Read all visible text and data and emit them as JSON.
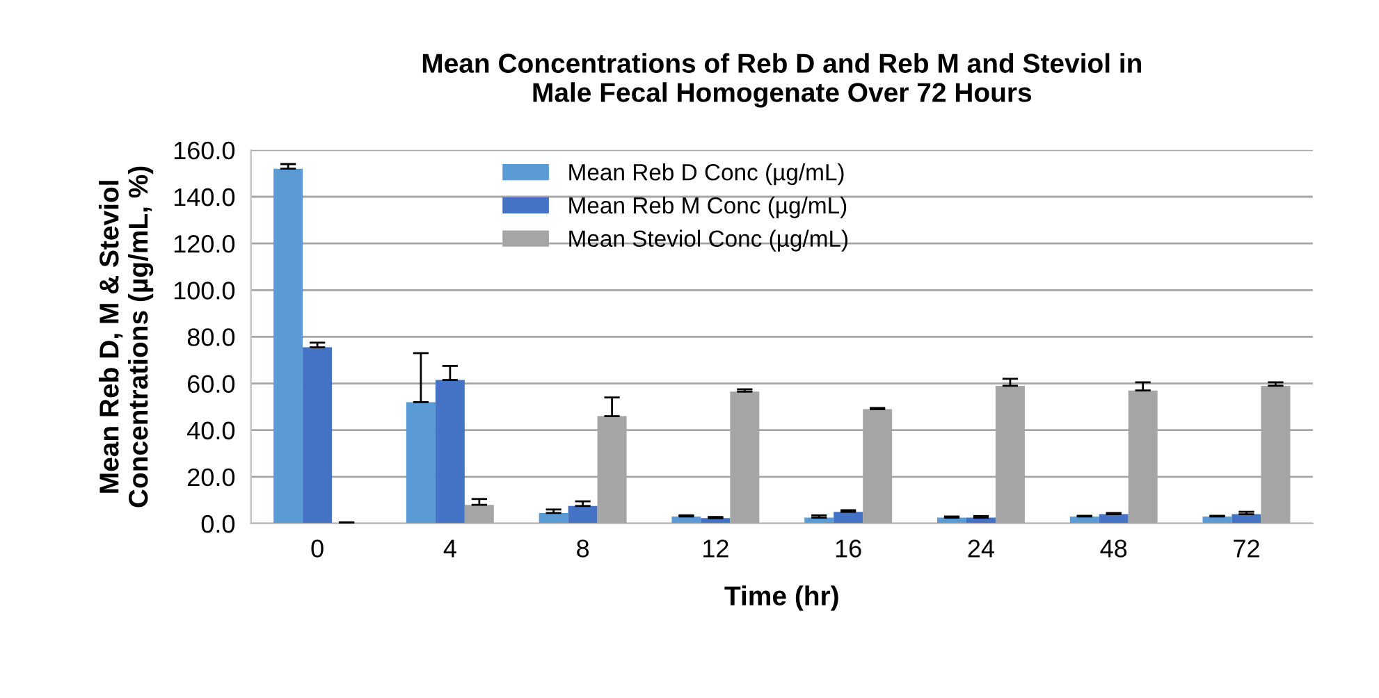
{
  "chart_data": {
    "type": "bar",
    "title": "Mean Concentrations of Reb D and Reb M and Steviol in\nMale Fecal Homogenate Over 72 Hours",
    "xlabel": "Time (hr)",
    "ylabel": "Mean Reb D, M & Steviol\nConcentrations (µg/mL, %)",
    "categories": [
      "0",
      "4",
      "8",
      "12",
      "16",
      "24",
      "48",
      "72"
    ],
    "series": [
      {
        "name": "Mean Reb D Conc (µg/mL)",
        "color": "#5b9bd5",
        "values": [
          152,
          52,
          4.5,
          3,
          2.5,
          2.5,
          3,
          3
        ],
        "errors": [
          [
            152,
            154
          ],
          [
            52,
            73
          ],
          [
            4.5,
            6
          ],
          [
            3,
            3.5
          ],
          [
            2.5,
            3.5
          ],
          [
            2.5,
            3
          ],
          [
            3,
            3.3
          ],
          [
            3,
            3.3
          ]
        ]
      },
      {
        "name": "Mean Reb M Conc (µg/mL)",
        "color": "#4472c4",
        "values": [
          75.5,
          61.5,
          7.5,
          2.3,
          5,
          2.5,
          4,
          4
        ],
        "errors": [
          [
            75.5,
            77.5
          ],
          [
            61.5,
            67.5
          ],
          [
            7.5,
            9.5
          ],
          [
            2.3,
            2.8
          ],
          [
            5,
            5.7
          ],
          [
            2.5,
            3.2
          ],
          [
            4,
            4.5
          ],
          [
            4,
            5
          ]
        ]
      },
      {
        "name": "Mean Steviol Conc (µg/mL)",
        "color": "#a5a5a5",
        "values": [
          0.2,
          8,
          46,
          56.5,
          49,
          59,
          57,
          59
        ],
        "errors": [
          [
            0.2,
            0.5
          ],
          [
            8,
            10.5
          ],
          [
            46,
            54
          ],
          [
            56.5,
            57.5
          ],
          [
            49,
            49.5
          ],
          [
            59,
            62
          ],
          [
            57,
            60.5
          ],
          [
            59,
            60.5
          ]
        ]
      }
    ],
    "ylim": [
      0,
      160
    ],
    "yticks": [
      {
        "value": 0,
        "label": "0.0"
      },
      {
        "value": 20,
        "label": "20.0"
      },
      {
        "value": 40,
        "label": "40.0"
      },
      {
        "value": 60,
        "label": "60.0"
      },
      {
        "value": 80,
        "label": "80.0"
      },
      {
        "value": 100,
        "label": "100.0"
      },
      {
        "value": 120,
        "label": "120.0"
      },
      {
        "value": 140,
        "label": "140.0"
      },
      {
        "value": 160,
        "label": "160.0"
      }
    ],
    "grid": "y",
    "legend": "top"
  }
}
